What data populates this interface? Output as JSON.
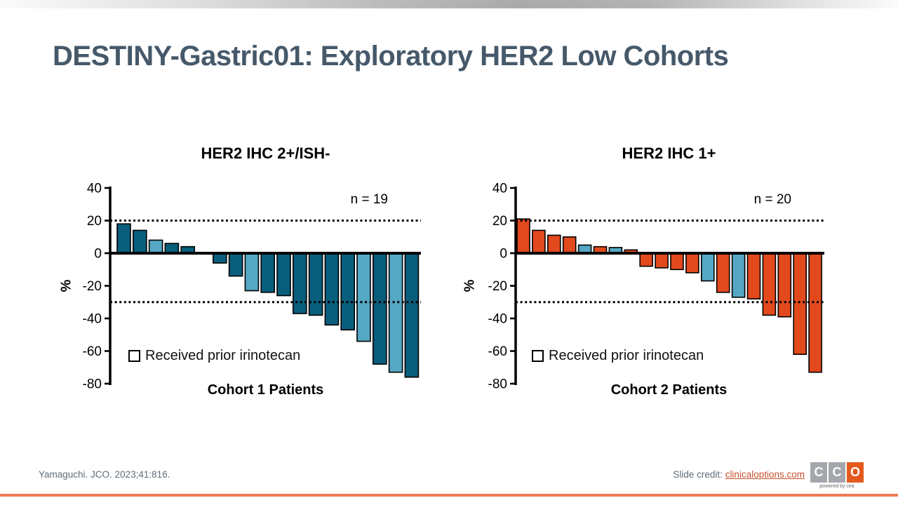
{
  "slide": {
    "title": "DESTINY-Gastric01: Exploratory HER2 Low Cohorts"
  },
  "colors": {
    "cohort1_bar": "#085e7c",
    "cohort2_bar": "#e2491d",
    "irinotecan_bar": "#55a7c4",
    "title_text": "#46596a",
    "accent_line": "#ec7b54",
    "logo_orange": "#e35a1e",
    "logo_gray": "#a4a8ad",
    "credit_link": "#c7502c"
  },
  "chart_data": [
    {
      "type": "bar",
      "variant": "waterfall",
      "title": "HER2 IHC 2+/ISH-",
      "n_label": "n = 19",
      "xlabel": "Cohort 1 Patients",
      "ylabel": "%",
      "ylim": [
        -80,
        40
      ],
      "yticks": [
        40,
        20,
        0,
        -20,
        -40,
        -60,
        -80
      ],
      "reference_lines": [
        20,
        -30
      ],
      "grid": "off",
      "legend_label": "Received prior irinotecan",
      "legend_position": "inside-bottom-left",
      "bar_color": "#085e7c",
      "irinotecan_color": "#55a7c4",
      "values": [
        18,
        14,
        8,
        6,
        4,
        0,
        -6,
        -14,
        -23,
        -24,
        -26,
        -37,
        -38,
        -44,
        -47,
        -54,
        -68,
        -73,
        -76
      ],
      "prior_irinotecan": [
        false,
        false,
        true,
        false,
        false,
        false,
        false,
        false,
        true,
        false,
        false,
        false,
        false,
        false,
        false,
        true,
        false,
        true,
        false
      ]
    },
    {
      "type": "bar",
      "variant": "waterfall",
      "title": "HER2 IHC 1+",
      "n_label": "n = 20",
      "xlabel": "Cohort 2 Patients",
      "ylabel": "%",
      "ylim": [
        -80,
        40
      ],
      "yticks": [
        40,
        20,
        0,
        -20,
        -40,
        -60,
        -80
      ],
      "reference_lines": [
        20,
        -30
      ],
      "grid": "off",
      "legend_label": "Received prior irinotecan",
      "legend_position": "inside-bottom-left",
      "bar_color": "#e2491d",
      "irinotecan_color": "#55a7c4",
      "values": [
        21,
        14,
        11,
        10,
        5,
        4,
        3.5,
        2,
        -8,
        -9,
        -10,
        -12,
        -17,
        -24,
        -27,
        -28,
        -38,
        -39,
        -62,
        -73
      ],
      "prior_irinotecan": [
        false,
        false,
        false,
        false,
        true,
        false,
        true,
        false,
        false,
        false,
        false,
        false,
        true,
        false,
        true,
        false,
        false,
        false,
        false,
        false
      ]
    }
  ],
  "footer": {
    "reference": "Yamaguchi. JCO. 2023;41:816.",
    "credit_label": "Slide credit: ",
    "credit_link": "clinicaloptions.com",
    "logo_tiles": [
      "C",
      "C",
      "O"
    ],
    "logo_tagline": "powered by cea"
  }
}
